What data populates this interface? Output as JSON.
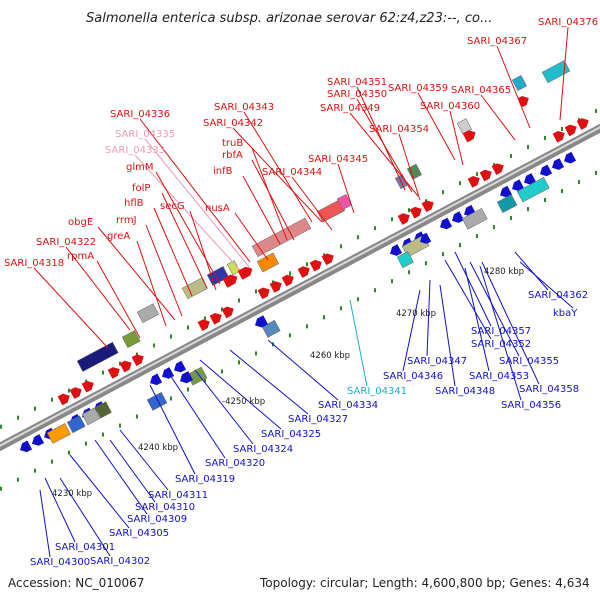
{
  "title": "Salmonella enterica subsp. arizonae serovar 62:z4,z23:--, co...",
  "accession": "Accession: NC_010067",
  "topology": "Topology: circular; Length: 4,600,800 bp; Genes: 4,634",
  "colors": {
    "red": "#dd1111",
    "blue": "#1111cc",
    "pink": "#ee99bb",
    "cyan": "#22aacc",
    "green": "#227722"
  },
  "ticks": [
    "4230 kbp",
    "4240 kbp",
    "-4250 kbp",
    "4260 kbp",
    "4270 kbp",
    "4280 kbp"
  ],
  "upper_labels": [
    {
      "text": "SARI_04376",
      "c": "red"
    },
    {
      "text": "SARI_04367",
      "c": "red"
    },
    {
      "text": "SARI_04351",
      "c": "red"
    },
    {
      "text": "SARI_04350",
      "c": "red"
    },
    {
      "text": "SARI_04349",
      "c": "red"
    },
    {
      "text": "SARI_04359",
      "c": "red"
    },
    {
      "text": "SARI_04360",
      "c": "red"
    },
    {
      "text": "SARI_04365",
      "c": "red"
    },
    {
      "text": "SARI_04343",
      "c": "red"
    },
    {
      "text": "SARI_04336",
      "c": "red"
    },
    {
      "text": "SARI_04342",
      "c": "red"
    },
    {
      "text": "SARI_04354",
      "c": "red"
    },
    {
      "text": "SARI_04335",
      "c": "pink"
    },
    {
      "text": "truB",
      "c": "red"
    },
    {
      "text": "SARI_04333",
      "c": "pink"
    },
    {
      "text": "rbfA",
      "c": "red"
    },
    {
      "text": "SARI_04345",
      "c": "red"
    },
    {
      "text": "glmM",
      "c": "red"
    },
    {
      "text": "infB",
      "c": "red"
    },
    {
      "text": "SARI_04344",
      "c": "red"
    },
    {
      "text": "folP",
      "c": "red"
    },
    {
      "text": "hflB",
      "c": "red"
    },
    {
      "text": "secG",
      "c": "red"
    },
    {
      "text": "nusA",
      "c": "red"
    },
    {
      "text": "obgE",
      "c": "red"
    },
    {
      "text": "rrmJ",
      "c": "red"
    },
    {
      "text": "greA",
      "c": "red"
    },
    {
      "text": "SARI_04322",
      "c": "red"
    },
    {
      "text": "rpmA",
      "c": "red"
    },
    {
      "text": "SARI_04318",
      "c": "red"
    }
  ],
  "lower_labels": [
    {
      "text": "SARI_04362",
      "c": "blue"
    },
    {
      "text": "kbaY",
      "c": "blue"
    },
    {
      "text": "SARI_04357",
      "c": "blue"
    },
    {
      "text": "SARI_04352",
      "c": "blue"
    },
    {
      "text": "SARI_04347",
      "c": "blue"
    },
    {
      "text": "SARI_04355",
      "c": "blue"
    },
    {
      "text": "SARI_04346",
      "c": "blue"
    },
    {
      "text": "SARI_04353",
      "c": "blue"
    },
    {
      "text": "SARI_04358",
      "c": "blue"
    },
    {
      "text": "SARI_04341",
      "c": "cyan"
    },
    {
      "text": "SARI_04348",
      "c": "blue"
    },
    {
      "text": "SARI_04356",
      "c": "blue"
    },
    {
      "text": "SARI_04334",
      "c": "blue"
    },
    {
      "text": "SARI_04327",
      "c": "blue"
    },
    {
      "text": "SARI_04325",
      "c": "blue"
    },
    {
      "text": "SARI_04324",
      "c": "blue"
    },
    {
      "text": "SARI_04320",
      "c": "blue"
    },
    {
      "text": "SARI_04319",
      "c": "blue"
    },
    {
      "text": "SARI_04311",
      "c": "blue"
    },
    {
      "text": "SARI_04310",
      "c": "blue"
    },
    {
      "text": "SARI_04309",
      "c": "blue"
    },
    {
      "text": "SARI_04305",
      "c": "blue"
    },
    {
      "text": "SARI_04301",
      "c": "blue"
    },
    {
      "text": "SARI_04302",
      "c": "blue"
    },
    {
      "text": "SARI_04300",
      "c": "blue"
    }
  ]
}
